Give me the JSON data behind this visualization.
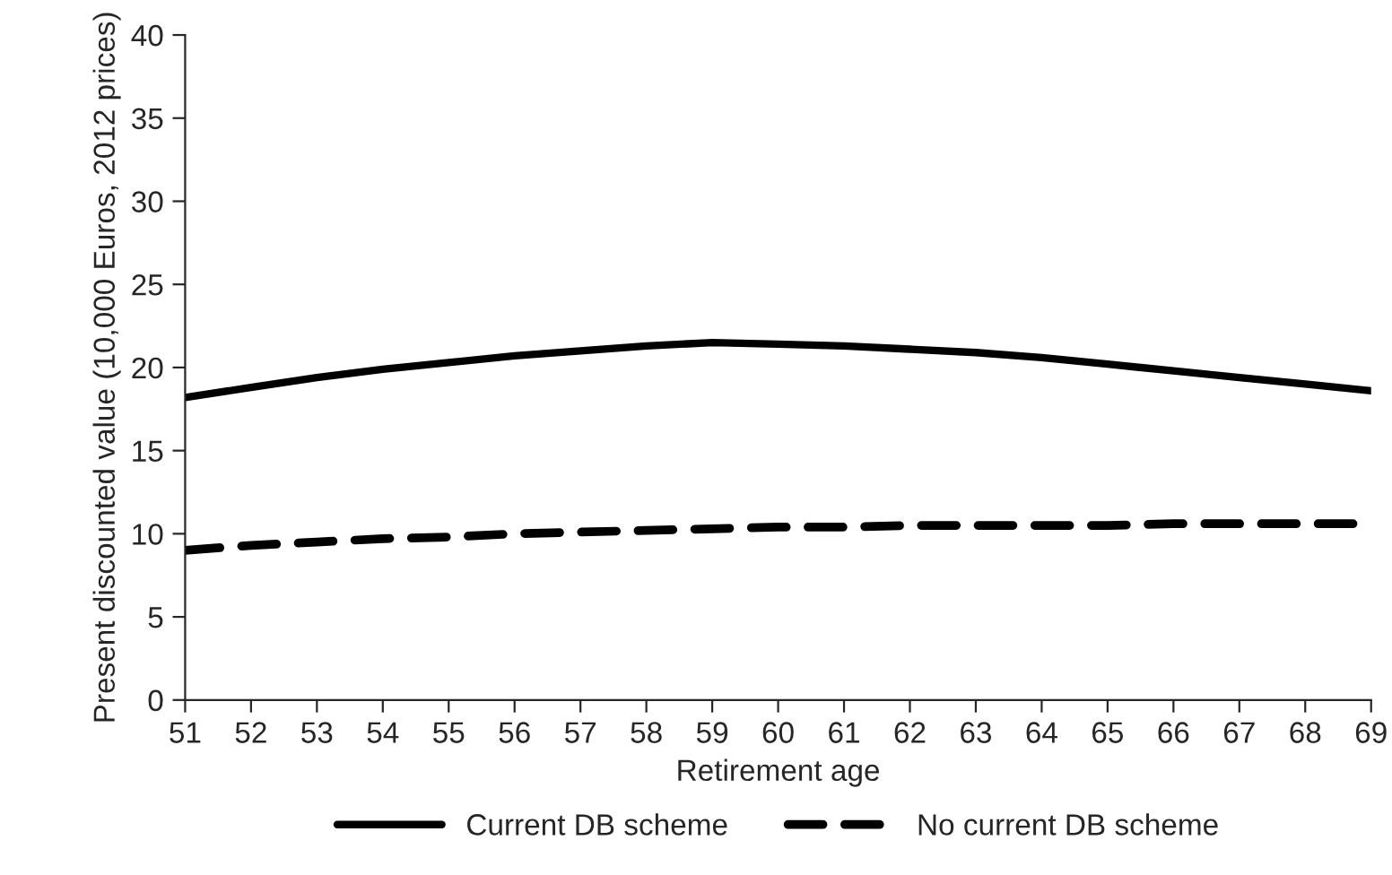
{
  "chart_data": {
    "type": "line",
    "xlabel": "Retirement age",
    "ylabel": "Present discounted value (10,000 Euros, 2012 prices)",
    "x": [
      51,
      52,
      53,
      54,
      55,
      56,
      57,
      58,
      59,
      60,
      61,
      62,
      63,
      64,
      65,
      66,
      67,
      68,
      69
    ],
    "series": [
      {
        "name": "Current DB scheme",
        "color": "#000000",
        "line_style": "solid",
        "values": [
          18.2,
          18.8,
          19.4,
          19.9,
          20.3,
          20.7,
          21.0,
          21.3,
          21.5,
          21.4,
          21.3,
          21.1,
          20.9,
          20.6,
          20.2,
          19.8,
          19.4,
          19.0,
          18.6
        ]
      },
      {
        "name": "No current DB scheme",
        "color": "#000000",
        "line_style": "dashed",
        "values": [
          9.0,
          9.3,
          9.5,
          9.7,
          9.8,
          10.0,
          10.1,
          10.2,
          10.3,
          10.4,
          10.4,
          10.5,
          10.5,
          10.5,
          10.5,
          10.6,
          10.6,
          10.6,
          10.6
        ]
      }
    ],
    "xlim": [
      51,
      69
    ],
    "xticks": [
      51,
      52,
      53,
      54,
      55,
      56,
      57,
      58,
      59,
      60,
      61,
      62,
      63,
      64,
      65,
      66,
      67,
      68,
      69
    ],
    "ylim": [
      0,
      40
    ],
    "yticks": [
      0,
      5,
      10,
      15,
      20,
      25,
      30,
      35,
      40
    ],
    "grid": false,
    "legend": "bottom",
    "marker": "none"
  }
}
